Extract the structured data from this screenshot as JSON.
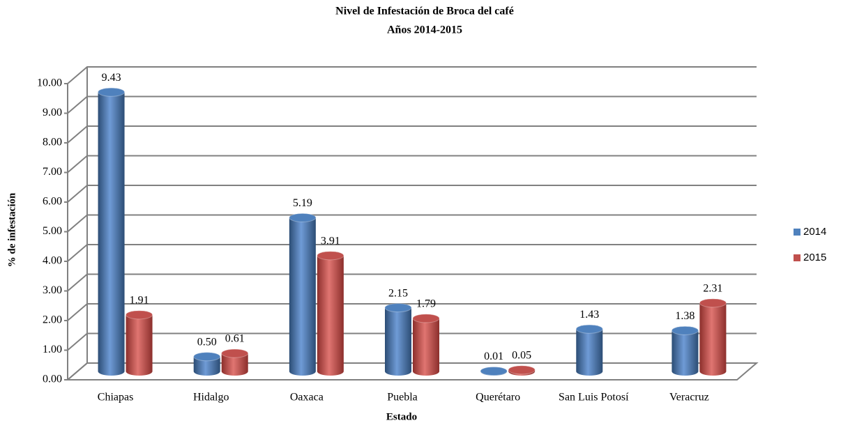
{
  "chart_data": {
    "type": "bar3d",
    "title": "Nivel de Infestación de Broca del café",
    "subtitle": "Años 2014-2015",
    "y_label": "% de infestación",
    "x_label": "Estado",
    "categories": [
      "Chiapas",
      "Hidalgo",
      "Oaxaca",
      "Puebla",
      "Querétaro",
      "San Luis Potosí",
      "Veracruz"
    ],
    "series": [
      {
        "name": "2014",
        "color": "#4f81bd",
        "values": [
          9.43,
          0.5,
          5.19,
          2.15,
          0.01,
          1.43,
          1.38
        ],
        "value_labels": [
          "9.43",
          "0.50",
          "5.19",
          "2.15",
          "0.01",
          "1.43",
          "1.38"
        ]
      },
      {
        "name": "2015",
        "color": "#c0504d",
        "values": [
          1.91,
          0.61,
          3.91,
          1.79,
          0.05,
          null,
          2.31
        ],
        "value_labels": [
          "1.91",
          "0.61",
          "3.91",
          "1.79",
          "0.05",
          null,
          "2.31"
        ]
      }
    ],
    "ylim": [
      0,
      10
    ],
    "yticks": [
      {
        "value": 0,
        "label": "0.00"
      },
      {
        "value": 1,
        "label": "1.00"
      },
      {
        "value": 2,
        "label": "2.00"
      },
      {
        "value": 3,
        "label": "3.00"
      },
      {
        "value": 4,
        "label": "4.00"
      },
      {
        "value": 5,
        "label": "5.00"
      },
      {
        "value": 6,
        "label": "6.00"
      },
      {
        "value": 7,
        "label": "7.00"
      },
      {
        "value": 8,
        "label": "8.00"
      },
      {
        "value": 9,
        "label": "9.00"
      },
      {
        "value": 10,
        "label": "10.00"
      }
    ],
    "grid": true,
    "legend": "right"
  }
}
